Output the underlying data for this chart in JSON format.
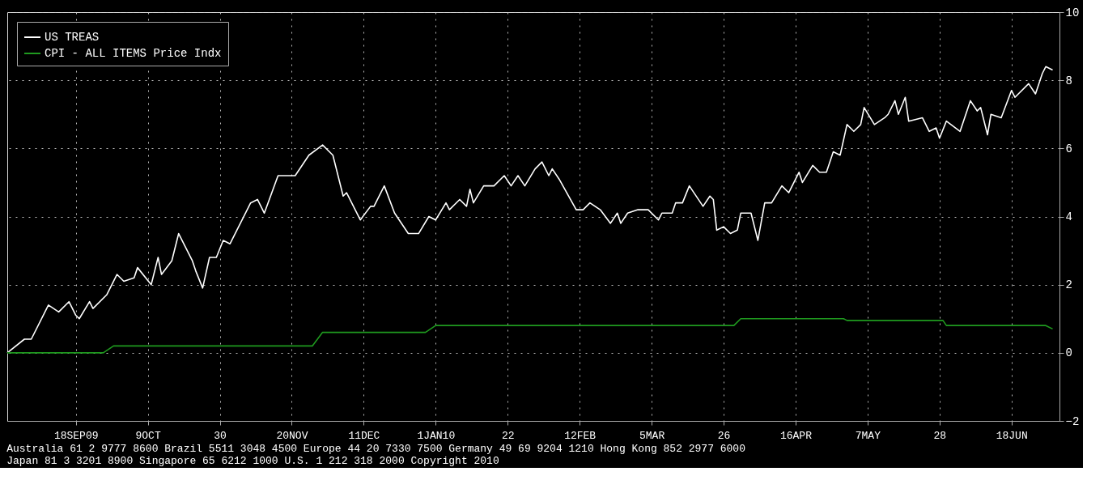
{
  "chart_data": {
    "type": "line",
    "xlim": [
      "2009-08-29",
      "2010-07-02"
    ],
    "xticks": [
      {
        "value": "2009-09-18",
        "label": "18SEP09"
      },
      {
        "value": "2009-10-09",
        "label": "9OCT"
      },
      {
        "value": "2009-10-30",
        "label": "30"
      },
      {
        "value": "2009-11-20",
        "label": "20NOV"
      },
      {
        "value": "2009-12-11",
        "label": "11DEC"
      },
      {
        "value": "2010-01-01",
        "label": "1JAN10"
      },
      {
        "value": "2010-01-22",
        "label": "22"
      },
      {
        "value": "2010-02-12",
        "label": "12FEB"
      },
      {
        "value": "2010-03-05",
        "label": "5MAR"
      },
      {
        "value": "2010-03-26",
        "label": "26"
      },
      {
        "value": "2010-04-16",
        "label": "16APR"
      },
      {
        "value": "2010-05-07",
        "label": "7MAY"
      },
      {
        "value": "2010-05-28",
        "label": "28"
      },
      {
        "value": "2010-06-18",
        "label": "18JUN"
      }
    ],
    "ylim": [
      -2,
      10
    ],
    "yticks": [
      -2,
      0,
      2,
      4,
      6,
      8,
      10
    ],
    "grid": true,
    "legend": "top left",
    "series": [
      {
        "name": "US TREAS",
        "color": "#ffffff",
        "x": [
          "2009-08-29",
          "2009-09-03",
          "2009-09-05",
          "2009-09-10",
          "2009-09-13",
          "2009-09-16",
          "2009-09-18",
          "2009-09-19",
          "2009-09-22",
          "2009-09-23",
          "2009-09-27",
          "2009-09-30",
          "2009-10-02",
          "2009-10-05",
          "2009-10-06",
          "2009-10-10",
          "2009-10-12",
          "2009-10-13",
          "2009-10-16",
          "2009-10-18",
          "2009-10-22",
          "2009-10-23",
          "2009-10-25",
          "2009-10-27",
          "2009-10-29",
          "2009-10-31",
          "2009-11-02",
          "2009-11-08",
          "2009-11-10",
          "2009-11-12",
          "2009-11-16",
          "2009-11-21",
          "2009-11-25",
          "2009-11-29",
          "2009-12-02",
          "2009-12-05",
          "2009-12-06",
          "2009-12-08",
          "2009-12-10",
          "2009-12-13",
          "2009-12-14",
          "2009-12-17",
          "2009-12-20",
          "2009-12-24",
          "2009-12-27",
          "2009-12-30",
          "2010-01-01",
          "2010-01-04",
          "2010-01-05",
          "2010-01-08",
          "2010-01-10",
          "2010-01-11",
          "2010-01-12",
          "2010-01-15",
          "2010-01-18",
          "2010-01-21",
          "2010-01-23",
          "2010-01-25",
          "2010-01-27",
          "2010-01-30",
          "2010-02-01",
          "2010-02-03",
          "2010-02-04",
          "2010-02-06",
          "2010-02-11",
          "2010-02-13",
          "2010-02-15",
          "2010-02-18",
          "2010-02-21",
          "2010-02-23",
          "2010-02-24",
          "2010-02-26",
          "2010-03-01",
          "2010-03-04",
          "2010-03-07",
          "2010-03-08",
          "2010-03-11",
          "2010-03-12",
          "2010-03-14",
          "2010-03-16",
          "2010-03-20",
          "2010-03-22",
          "2010-03-23",
          "2010-03-24",
          "2010-03-26",
          "2010-03-28",
          "2010-03-30",
          "2010-03-31",
          "2010-04-03",
          "2010-04-05",
          "2010-04-07",
          "2010-04-09",
          "2010-04-12",
          "2010-04-14",
          "2010-04-17",
          "2010-04-18",
          "2010-04-21",
          "2010-04-23",
          "2010-04-25",
          "2010-04-27",
          "2010-04-29",
          "2010-05-01",
          "2010-05-03",
          "2010-05-05",
          "2010-05-06",
          "2010-05-09",
          "2010-05-12",
          "2010-05-13",
          "2010-05-15",
          "2010-05-16",
          "2010-05-18",
          "2010-05-19",
          "2010-05-23",
          "2010-05-25",
          "2010-05-27",
          "2010-05-28",
          "2010-05-30",
          "2010-06-03",
          "2010-06-06",
          "2010-06-08",
          "2010-06-09",
          "2010-06-11",
          "2010-06-12",
          "2010-06-15",
          "2010-06-18",
          "2010-06-19",
          "2010-06-23",
          "2010-06-25",
          "2010-06-27",
          "2010-06-28",
          "2010-06-30"
        ],
        "values": [
          0,
          0.4,
          0.4,
          1.4,
          1.2,
          1.5,
          1.1,
          1.0,
          1.5,
          1.3,
          1.7,
          2.3,
          2.1,
          2.2,
          2.5,
          2.0,
          2.8,
          2.3,
          2.7,
          3.5,
          2.7,
          2.4,
          1.9,
          2.8,
          2.8,
          3.3,
          3.2,
          4.4,
          4.5,
          4.1,
          5.2,
          5.2,
          5.8,
          6.1,
          5.8,
          4.6,
          4.7,
          4.3,
          3.9,
          4.3,
          4.3,
          4.9,
          4.1,
          3.5,
          3.5,
          4.0,
          3.9,
          4.4,
          4.2,
          4.5,
          4.3,
          4.8,
          4.4,
          4.9,
          4.9,
          5.2,
          4.9,
          5.2,
          4.9,
          5.4,
          5.6,
          5.2,
          5.4,
          5.1,
          4.2,
          4.2,
          4.4,
          4.2,
          3.8,
          4.1,
          3.8,
          4.1,
          4.2,
          4.2,
          3.9,
          4.1,
          4.1,
          4.4,
          4.4,
          4.9,
          4.3,
          4.6,
          4.5,
          3.6,
          3.7,
          3.5,
          3.6,
          4.1,
          4.1,
          3.3,
          4.4,
          4.4,
          4.9,
          4.7,
          5.3,
          5.0,
          5.5,
          5.3,
          5.3,
          5.9,
          5.8,
          6.7,
          6.5,
          6.7,
          7.2,
          6.7,
          6.9,
          7.0,
          7.4,
          7.0,
          7.5,
          6.8,
          6.9,
          6.5,
          6.6,
          6.3,
          6.8,
          6.5,
          7.4,
          7.1,
          7.2,
          6.4,
          7.0,
          6.9,
          7.7,
          7.5,
          7.9,
          7.6,
          8.2,
          8.4,
          8.3
        ]
      },
      {
        "name": "CPI - ALL ITEMS Price Indx",
        "color": "#1f9a1f",
        "x": [
          "2009-08-29",
          "2009-09-26",
          "2009-09-29",
          "2009-11-26",
          "2009-11-29",
          "2009-12-29",
          "2010-01-01",
          "2010-03-29",
          "2010-03-31",
          "2010-04-30",
          "2010-05-01",
          "2010-05-29",
          "2010-05-30",
          "2010-06-28",
          "2010-06-30"
        ],
        "values": [
          0,
          0,
          0.2,
          0.2,
          0.6,
          0.6,
          0.8,
          0.8,
          1.0,
          1.0,
          0.95,
          0.95,
          0.8,
          0.8,
          0.7
        ]
      }
    ],
    "annotations": [
      "Australia 61 2 9777 8600 Brazil 5511 3048 4500 Europe 44 20 7330 7500 Germany 49 69 9204 1210 Hong Kong 852 2977 6000",
      "Japan 81 3 3201 8900     Singapore 65 6212 1000     U.S. 1 212 318 2000     Copyright 2010"
    ]
  }
}
